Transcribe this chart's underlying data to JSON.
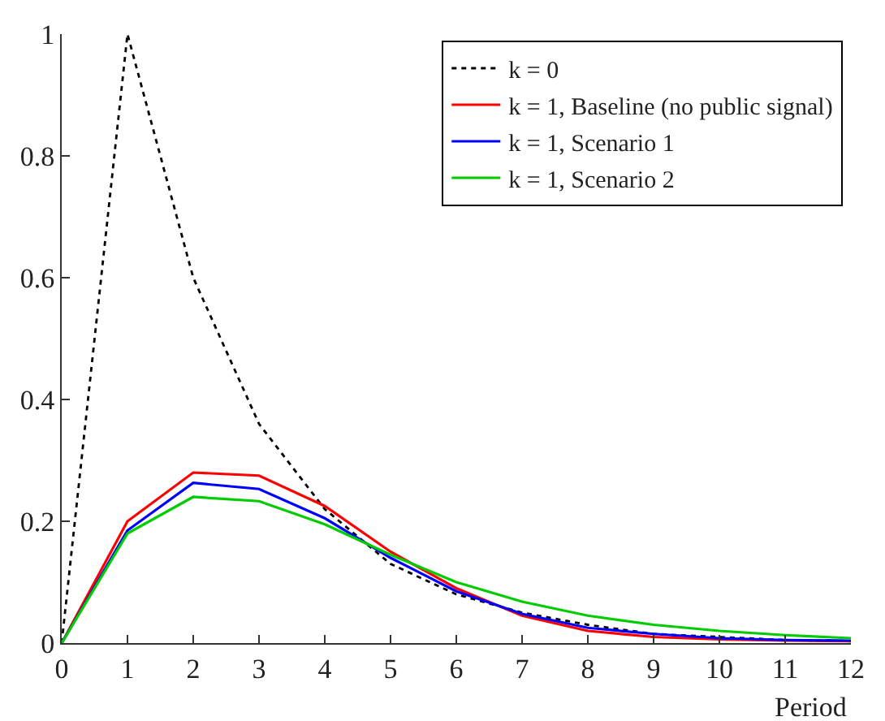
{
  "chart_data": {
    "type": "line",
    "xlabel": "Period",
    "x": [
      0,
      1,
      2,
      3,
      4,
      5,
      6,
      7,
      8,
      9,
      10,
      11,
      12
    ],
    "xlim": [
      0,
      12
    ],
    "xticks": [
      0,
      1,
      2,
      3,
      4,
      5,
      6,
      7,
      8,
      9,
      10,
      11,
      12
    ],
    "ylim": [
      0,
      1
    ],
    "yticks": [
      0,
      0.2,
      0.4,
      0.6,
      0.8,
      1
    ],
    "legend": "top right",
    "marker": "none",
    "series": [
      {
        "name": "k = 0",
        "color": "#000000",
        "line_style": "dotted",
        "values": [
          0,
          1,
          0.6,
          0.36,
          0.22,
          0.13,
          0.08,
          0.05,
          0.03,
          0.015,
          0.01,
          0.005,
          0.003
        ]
      },
      {
        "name": "k = 1, Baseline (no public signal)",
        "color": "#ff0000",
        "line_style": "solid",
        "values": [
          0,
          0.2,
          0.28,
          0.275,
          0.225,
          0.15,
          0.09,
          0.045,
          0.02,
          0.01,
          0.006,
          0.004,
          0.003
        ]
      },
      {
        "name": "k = 1, Scenario 1",
        "color": "#0000ff",
        "line_style": "solid",
        "values": [
          0,
          0.185,
          0.263,
          0.253,
          0.205,
          0.14,
          0.085,
          0.048,
          0.025,
          0.015,
          0.008,
          0.005,
          0.004
        ]
      },
      {
        "name": "k = 1, Scenario 2",
        "color": "#00cc00",
        "line_style": "solid",
        "values": [
          0,
          0.18,
          0.24,
          0.233,
          0.195,
          0.145,
          0.1,
          0.068,
          0.045,
          0.03,
          0.02,
          0.013,
          0.008
        ]
      }
    ]
  }
}
